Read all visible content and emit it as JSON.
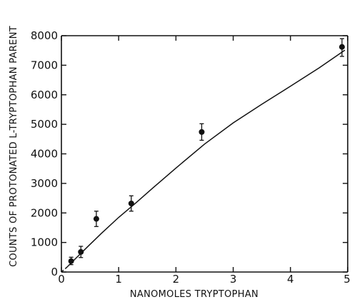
{
  "chart_data": {
    "type": "scatter",
    "title": "",
    "xlabel": "NANOMOLES TRYPTOPHAN",
    "ylabel": "COUNTS OF PROTONATED L-TRYPTOPHAN PARENT",
    "xlim": [
      0,
      5
    ],
    "ylim": [
      0,
      8000
    ],
    "x_ticks": [
      0,
      1,
      2,
      3,
      4,
      5
    ],
    "x_tick_labels": [
      "0",
      "1",
      "2",
      "3",
      "4",
      "5"
    ],
    "y_ticks": [
      0,
      1000,
      2000,
      3000,
      4000,
      5000,
      6000,
      7000,
      8000
    ],
    "y_tick_labels": [
      "0",
      "1000",
      "2000",
      "3000",
      "4000",
      "5000",
      "6000",
      "7000",
      "8000"
    ],
    "grid": false,
    "series": [
      {
        "points": [
          {
            "x": 0.17,
            "y": 370,
            "err_low": 250,
            "err_high": 500
          },
          {
            "x": 0.34,
            "y": 680,
            "err_low": 490,
            "err_high": 870
          },
          {
            "x": 0.61,
            "y": 1800,
            "err_low": 1540,
            "err_high": 2060
          },
          {
            "x": 1.22,
            "y": 2320,
            "err_low": 2060,
            "err_high": 2580
          },
          {
            "x": 2.45,
            "y": 4740,
            "err_low": 4460,
            "err_high": 5020
          },
          {
            "x": 4.9,
            "y": 7620,
            "err_low": 7300,
            "err_high": 7900
          }
        ]
      }
    ],
    "fit_curve": {
      "style": "solid",
      "x": [
        0.1,
        0.25,
        0.45,
        0.7,
        1.0,
        1.3,
        1.6,
        2.0,
        2.5,
        3.0,
        3.5,
        4.0,
        4.5,
        4.95
      ],
      "y": [
        170,
        460,
        840,
        1310,
        1850,
        2340,
        2850,
        3520,
        4330,
        5050,
        5680,
        6290,
        6910,
        7510
      ]
    },
    "dashed_segment": {
      "style": "dashed",
      "x": [
        0.0,
        0.1
      ],
      "y": [
        0,
        170
      ]
    }
  }
}
